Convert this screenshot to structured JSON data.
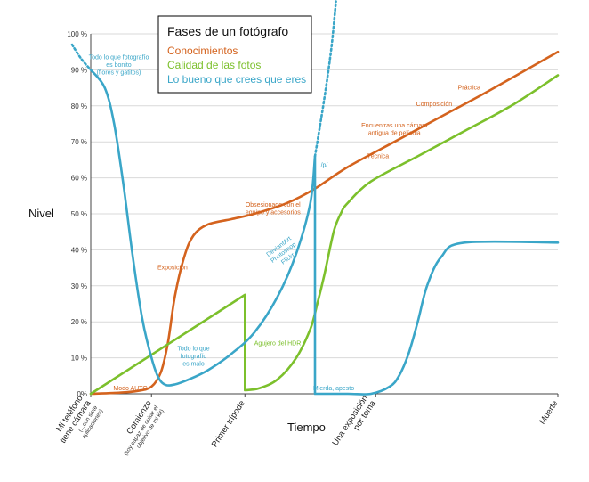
{
  "chart_data": {
    "type": "line",
    "title": "Fases de un fotógrafo",
    "xlabel": "Tiempo",
    "ylabel": "Nivel",
    "ylim": [
      0,
      100
    ],
    "xlim": [
      0,
      100
    ],
    "yticks": [
      {
        "value": 0,
        "label": "0%"
      },
      {
        "value": 10,
        "label": "10 %"
      },
      {
        "value": 20,
        "label": "20 %"
      },
      {
        "value": 30,
        "label": "30 %"
      },
      {
        "value": 40,
        "label": "40 %"
      },
      {
        "value": 50,
        "label": "50 %"
      },
      {
        "value": 60,
        "label": "60 %"
      },
      {
        "value": 70,
        "label": "70 %"
      },
      {
        "value": 80,
        "label": "80 %"
      },
      {
        "value": 90,
        "label": "90 %"
      },
      {
        "value": 100,
        "label": "100 %"
      }
    ],
    "xticks": [
      {
        "value": 0,
        "lines": [
          "Mi teléfono",
          "tiene cámara"
        ],
        "sub": "(...con siete aplicaciones)"
      },
      {
        "value": 13,
        "lines": [
          "Comienzo"
        ],
        "sub": "(soy capaz de quitar el objetivo de mi kit)"
      },
      {
        "value": 33,
        "lines": [
          "Primer trípode"
        ],
        "sub": ""
      },
      {
        "value": 61,
        "lines": [
          "Una exposición",
          "por toma"
        ],
        "sub": ""
      },
      {
        "value": 100,
        "lines": [
          "Muerte"
        ],
        "sub": ""
      }
    ],
    "legend_position": "top-center",
    "series": [
      {
        "name": "Conocimientos",
        "color": "#d4631e",
        "x": [
          0,
          6,
          10,
          13,
          15,
          16.5,
          18,
          20,
          22,
          25,
          30,
          35,
          42,
          48,
          55,
          65,
          75,
          85,
          100
        ],
        "y": [
          0,
          0.3,
          0.8,
          2,
          6,
          14,
          27,
          38,
          44,
          47,
          48.5,
          50,
          53,
          57,
          63,
          70,
          77,
          84,
          95
        ]
      },
      {
        "name": "Calidad de las fotos",
        "color": "#7cc02c",
        "x": [
          0,
          33,
          33,
          36,
          40,
          44,
          47,
          48.5,
          50,
          52,
          53.5,
          55,
          60,
          70,
          80,
          90,
          100
        ],
        "y": [
          0,
          27.5,
          1,
          1.5,
          4,
          10,
          18,
          25,
          33,
          45,
          50,
          53,
          59,
          66,
          73,
          80,
          88.5
        ]
      },
      {
        "name": "Lo bueno que crees que eres",
        "color": "#3aa6c8",
        "x": [
          0,
          3,
          5,
          7,
          9,
          11,
          13,
          14.5,
          16,
          18,
          21,
          25,
          30,
          35,
          40,
          44,
          47,
          48,
          48,
          55,
          60,
          64,
          66,
          68,
          70,
          72,
          75,
          80,
          100
        ],
        "y": [
          90,
          85,
          75,
          58,
          38,
          21,
          10,
          4.5,
          2.5,
          2.6,
          4,
          6.5,
          11,
          17,
          27,
          39,
          53,
          66,
          0,
          0,
          0,
          2,
          5,
          11,
          20,
          30,
          38,
          42,
          42
        ]
      }
    ],
    "dotted_extensions": [
      {
        "series": "Lo bueno que crees que eres",
        "from": "start",
        "x": [
          -4,
          -2,
          0
        ],
        "y": [
          97,
          93,
          90
        ]
      },
      {
        "series": "Lo bueno que crees que eres",
        "from": "peak",
        "x": [
          48,
          50,
          51.5,
          52.5
        ],
        "y": [
          66,
          82,
          96,
          109
        ]
      }
    ],
    "annotations": [
      {
        "color": "#3aa6c8",
        "lines": [
          "Todo lo que fotografío",
          "es bonito",
          "(flores y gatitos)"
        ],
        "x": 6,
        "y": 93,
        "rotate": 0
      },
      {
        "color": "#3aa6c8",
        "lines": [
          "Todo lo que",
          "fotografío",
          "es malo"
        ],
        "x": 22,
        "y": 12,
        "rotate": 0
      },
      {
        "color": "#3aa6c8",
        "lines": [
          "DeviantArt",
          "Photoshop",
          "Flickr"
        ],
        "x": 40.5,
        "y": 40.5,
        "rotate": -37
      },
      {
        "color": "#3aa6c8",
        "lines": [
          "/p/"
        ],
        "x": 50,
        "y": 63,
        "rotate": 0
      },
      {
        "color": "#3aa6c8",
        "lines": [
          "Mierda, apesto"
        ],
        "x": 52,
        "y": 1,
        "rotate": 0
      },
      {
        "color": "#d4631e",
        "lines": [
          "Modo AUTO"
        ],
        "x": 8.5,
        "y": 1,
        "rotate": 0
      },
      {
        "color": "#d4631e",
        "lines": [
          "Exposición"
        ],
        "x": 17.5,
        "y": 34.5,
        "rotate": 0
      },
      {
        "color": "#d4631e",
        "lines": [
          "Obsesionado con el",
          "equipo y accesorios"
        ],
        "x": 39,
        "y": 52,
        "rotate": 0
      },
      {
        "color": "#d4631e",
        "lines": [
          "Técnica"
        ],
        "x": 61.5,
        "y": 65.5,
        "rotate": 0
      },
      {
        "color": "#d4631e",
        "lines": [
          "Encuentras una cámara",
          "antigua de película"
        ],
        "x": 65,
        "y": 74,
        "rotate": 0
      },
      {
        "color": "#d4631e",
        "lines": [
          "Composición"
        ],
        "x": 73.5,
        "y": 80,
        "rotate": 0
      },
      {
        "color": "#d4631e",
        "lines": [
          "Práctica"
        ],
        "x": 81,
        "y": 84.5,
        "rotate": 0
      },
      {
        "color": "#7cc02c",
        "lines": [
          "Agujero del HDR"
        ],
        "x": 40,
        "y": 13.5,
        "rotate": 0
      }
    ]
  }
}
